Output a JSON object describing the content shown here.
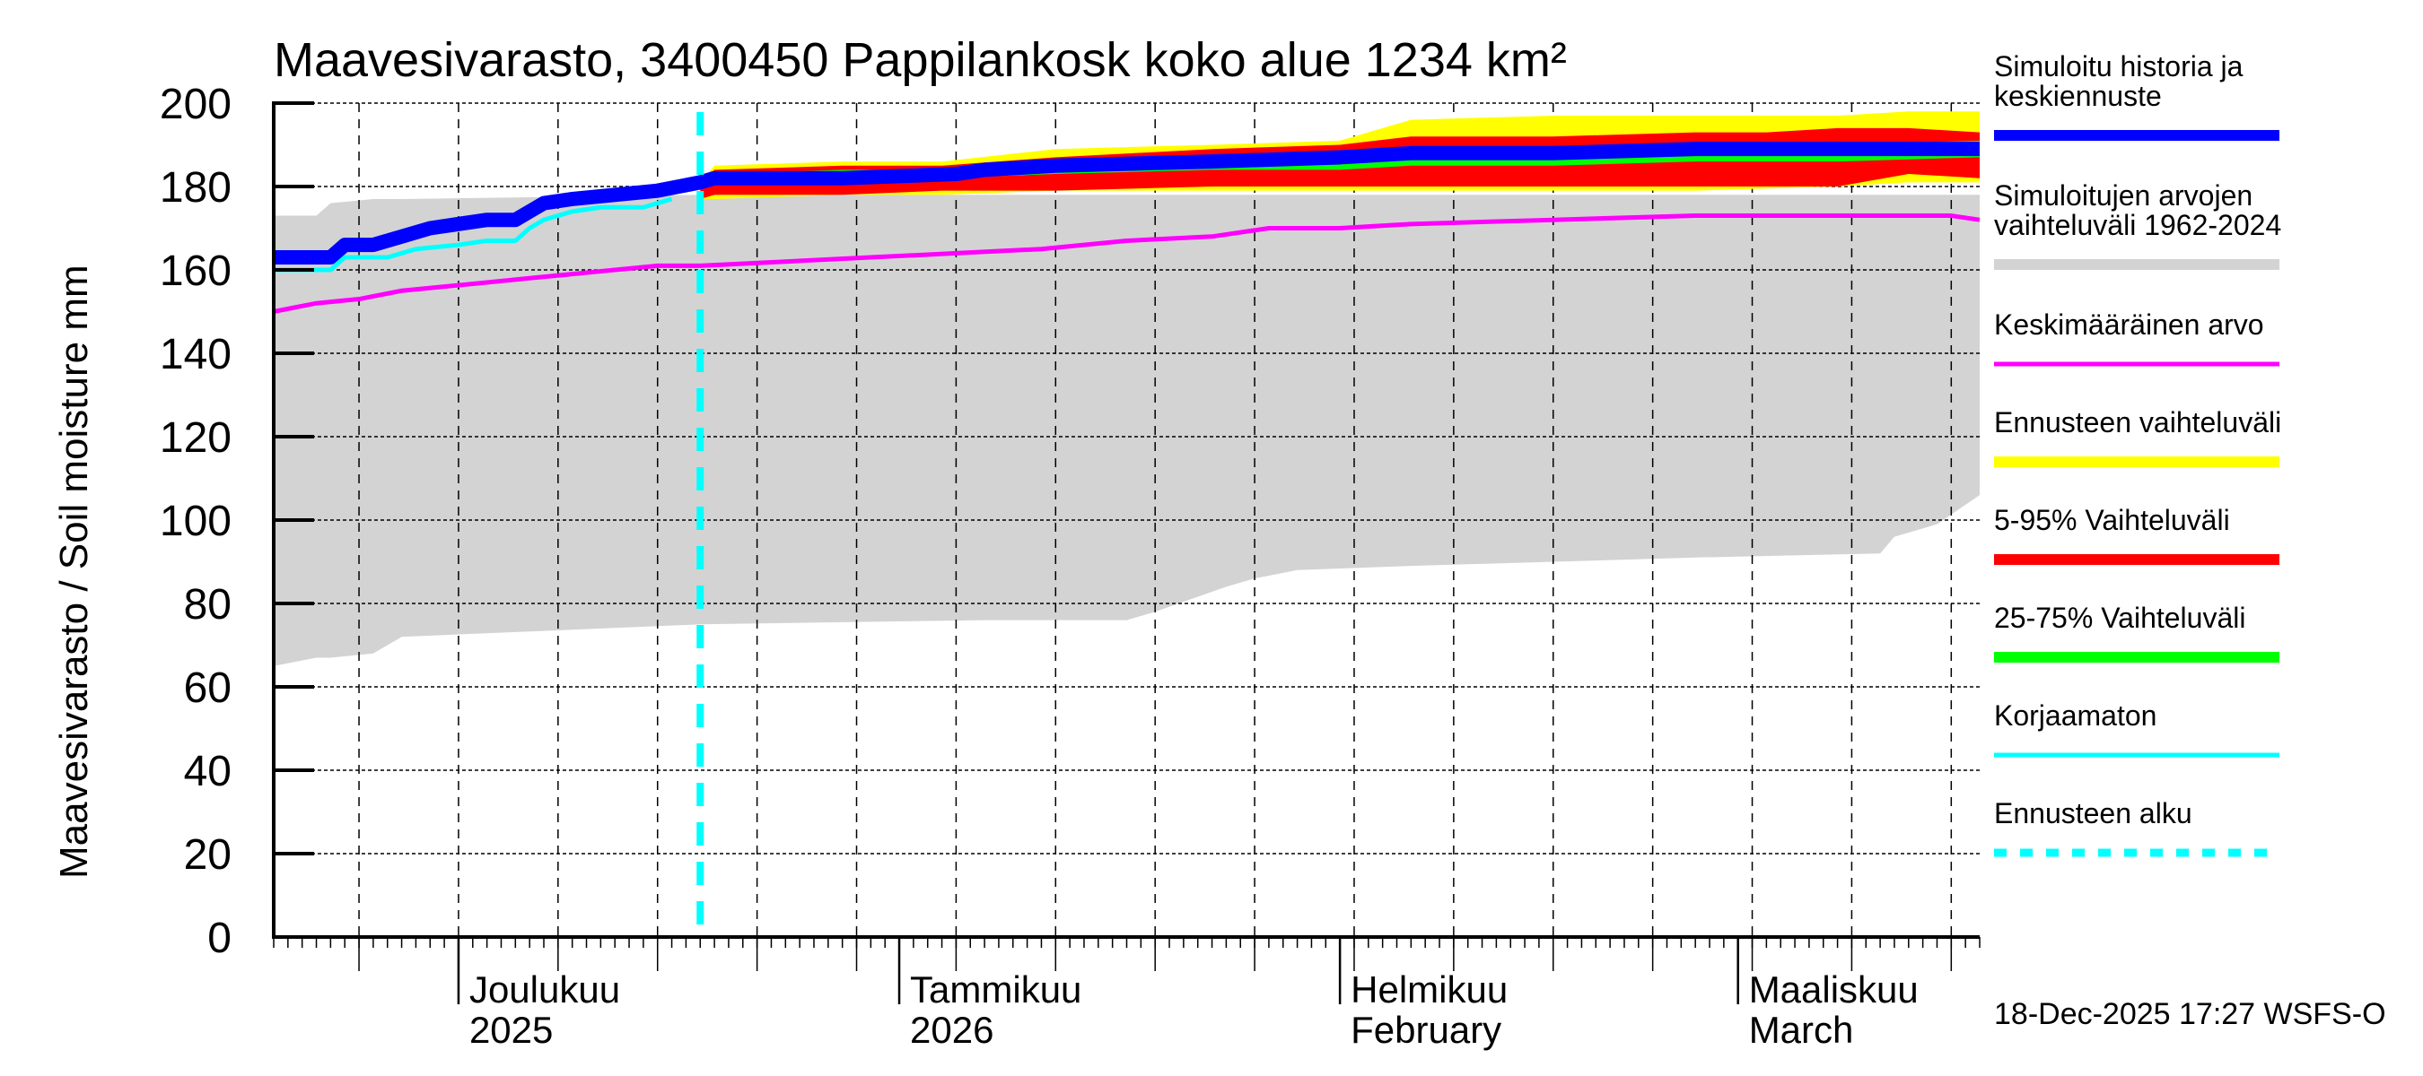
{
  "chart_data": {
    "type": "area",
    "title": "Maavesivarasto, 3400450 Pappilankosk koko alue 1234 km²",
    "ylabel": "Maavesivarasto / Soil moisture   mm",
    "xlabel": "",
    "ylim": [
      0,
      200
    ],
    "yticks": [
      0,
      20,
      40,
      60,
      80,
      100,
      120,
      140,
      160,
      180,
      200
    ],
    "x_unit": "days since 2025-11-18",
    "xlim": [
      0,
      120
    ],
    "grid": true,
    "legend_position": "right",
    "x_month_labels": [
      {
        "day": 13,
        "line1": "Joulukuu",
        "line2": "2025"
      },
      {
        "day": 44,
        "line1": "Tammikuu",
        "line2": "2026"
      },
      {
        "day": 75,
        "line1": "Helmikuu",
        "line2": "February"
      },
      {
        "day": 103,
        "line1": "Maaliskuu",
        "line2": "March"
      }
    ],
    "forecast_start_day": 30,
    "series": [
      {
        "name": "Simuloitujen arvojen vaihteluväli 1962-2024",
        "kind": "band",
        "color": "#d3d3d3",
        "x": [
          0,
          3,
          4,
          7,
          9,
          30,
          50,
          60,
          62,
          67,
          69,
          72,
          80,
          90,
          100,
          113,
          114,
          117,
          120
        ],
        "lower": [
          65,
          67,
          67,
          68,
          72,
          75,
          76,
          76,
          78,
          84,
          86,
          88,
          89,
          90,
          91,
          92,
          96,
          99,
          106
        ],
        "upper": [
          173,
          173,
          176,
          177,
          177,
          178,
          178,
          178,
          178,
          178,
          178,
          178,
          178,
          178,
          178,
          178,
          178,
          178,
          178
        ]
      },
      {
        "name": "Ennusteen vaihteluväli",
        "kind": "band",
        "color": "#ffff00",
        "x": [
          30,
          31,
          40,
          47,
          55,
          66,
          75,
          80,
          90,
          100,
          110,
          115,
          120
        ],
        "lower": [
          177,
          177,
          178,
          178,
          179,
          179,
          179,
          179,
          179,
          179,
          180,
          181,
          181
        ],
        "upper": [
          181,
          185,
          186,
          186,
          189,
          190,
          191,
          196,
          197,
          197,
          197,
          198,
          198
        ]
      },
      {
        "name": "5-95% Vaihteluväli",
        "kind": "band",
        "color": "#ff0000",
        "x": [
          30,
          31,
          40,
          47,
          55,
          66,
          75,
          80,
          90,
          100,
          105,
          110,
          115,
          120
        ],
        "lower": [
          177,
          178,
          178,
          179,
          179,
          180,
          180,
          180,
          180,
          180,
          180,
          180,
          183,
          182
        ],
        "upper": [
          181,
          184,
          185,
          185,
          187,
          189,
          190,
          192,
          192,
          193,
          193,
          194,
          194,
          193
        ]
      },
      {
        "name": "25-75% Vaihteluväli",
        "kind": "band",
        "color": "#00ff00",
        "x": [
          30,
          31,
          40,
          47,
          55,
          66,
          75,
          80,
          90,
          100,
          110,
          120
        ],
        "lower": [
          180,
          181,
          182,
          182,
          183,
          184,
          184,
          185,
          185,
          186,
          186,
          187
        ],
        "upper": [
          181,
          183,
          184,
          184,
          185,
          186,
          187,
          188,
          189,
          190,
          190,
          191
        ]
      },
      {
        "name": "Simuloitu historia ja keskiennuste",
        "kind": "line",
        "color": "#0000ff",
        "x": [
          0,
          4,
          5,
          7,
          9,
          11,
          13,
          15,
          17,
          18,
          19,
          21,
          24,
          27,
          30,
          31,
          40,
          48,
          50,
          55,
          66,
          75,
          80,
          90,
          100,
          110,
          120
        ],
        "y": [
          163,
          163,
          166,
          166,
          168,
          170,
          171,
          172,
          172,
          174,
          176,
          177,
          178,
          179,
          181,
          182,
          182,
          183,
          184,
          185,
          186,
          187,
          188,
          188,
          189,
          189,
          189
        ]
      },
      {
        "name": "Keskimääräinen arvo",
        "kind": "line",
        "color": "#ff00ff",
        "x": [
          0,
          3,
          6,
          9,
          12,
          15,
          18,
          21,
          24,
          27,
          30,
          36,
          42,
          48,
          54,
          60,
          66,
          70,
          75,
          80,
          90,
          100,
          110,
          118,
          120
        ],
        "y": [
          150,
          152,
          153,
          155,
          156,
          157,
          158,
          159,
          160,
          161,
          161,
          162,
          163,
          164,
          165,
          167,
          168,
          170,
          170,
          171,
          172,
          173,
          173,
          173,
          172
        ]
      },
      {
        "name": "Korjaamaton",
        "kind": "line",
        "color": "#00ffff",
        "x": [
          0,
          4,
          5,
          8,
          10,
          13,
          15,
          17,
          18,
          19,
          21,
          23,
          26,
          28
        ],
        "y": [
          160,
          160,
          163,
          163,
          165,
          166,
          167,
          167,
          170,
          172,
          174,
          175,
          175,
          177
        ]
      },
      {
        "name": "Ennusteen alku",
        "kind": "vline",
        "color": "#00ffff",
        "x": 30
      }
    ]
  },
  "legend": [
    {
      "lines": [
        "Simuloitu historia ja",
        "keskiennuste"
      ],
      "color": "#0000ff",
      "style": "thick"
    },
    {
      "lines": [
        "Simuloitujen arvojen",
        "vaihteluväli 1962-2024"
      ],
      "color": "#d3d3d3",
      "style": "thick"
    },
    {
      "lines": [
        "Keskimääräinen arvo"
      ],
      "color": "#ff00ff",
      "style": "thin"
    },
    {
      "lines": [
        "Ennusteen vaihteluväli"
      ],
      "color": "#ffff00",
      "style": "thick"
    },
    {
      "lines": [
        "5-95% Vaihteluväli"
      ],
      "color": "#ff0000",
      "style": "thick"
    },
    {
      "lines": [
        "25-75% Vaihteluväli"
      ],
      "color": "#00ff00",
      "style": "thick"
    },
    {
      "lines": [
        "Korjaamaton"
      ],
      "color": "#00ffff",
      "style": "thin"
    },
    {
      "lines": [
        "Ennusteen alku"
      ],
      "color": "#00ffff",
      "style": "dotted"
    }
  ],
  "footer": "18-Dec-2025 17:27 WSFS-O"
}
